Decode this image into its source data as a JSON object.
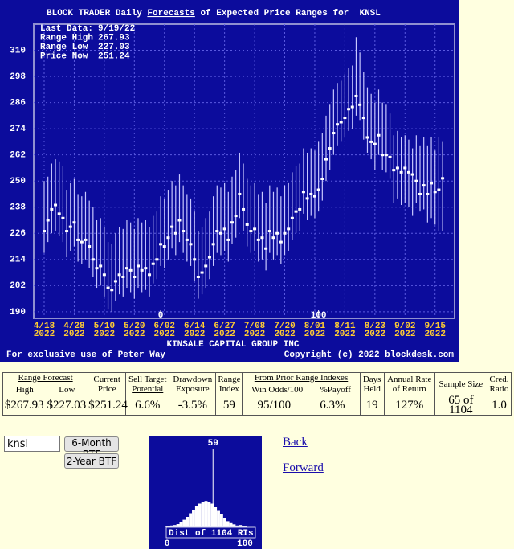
{
  "chart_data": [
    {
      "type": "range",
      "title_parts": [
        "BLOCK TRADER Daily ",
        "Forecasts",
        " of Expected Price Ranges for  KNSL"
      ],
      "info": [
        [
          "Last Data:",
          "9/19/22"
        ],
        [
          "Range High",
          "267.93"
        ],
        [
          "Range Low ",
          "227.03"
        ],
        [
          "Price Now ",
          "251.24"
        ]
      ],
      "categories": [
        "4/18",
        null,
        null,
        null,
        null,
        null,
        null,
        null,
        "4/28",
        null,
        null,
        null,
        null,
        null,
        null,
        null,
        "5/10",
        null,
        null,
        null,
        null,
        null,
        null,
        null,
        "5/20",
        null,
        null,
        null,
        null,
        null,
        null,
        null,
        "6/02",
        null,
        null,
        null,
        null,
        null,
        null,
        null,
        "6/14",
        null,
        null,
        null,
        null,
        null,
        null,
        null,
        "6/27",
        null,
        null,
        null,
        null,
        null,
        null,
        null,
        "7/08",
        null,
        null,
        null,
        null,
        null,
        null,
        null,
        "7/20",
        null,
        null,
        null,
        null,
        null,
        null,
        null,
        "8/01",
        null,
        null,
        null,
        null,
        null,
        null,
        null,
        "8/11",
        null,
        null,
        null,
        null,
        null,
        null,
        null,
        "8/23",
        null,
        null,
        null,
        null,
        null,
        null,
        null,
        "9/02",
        null,
        null,
        null,
        null,
        null,
        null,
        null,
        "9/15",
        null,
        null
      ],
      "x_year": "2022",
      "high": [
        250,
        252,
        258,
        260,
        259,
        257,
        246,
        249,
        251,
        244,
        243,
        245,
        241,
        238,
        232,
        233,
        229,
        222,
        221,
        226,
        229,
        228,
        232,
        231,
        228,
        233,
        231,
        232,
        229,
        234,
        236,
        243,
        242,
        246,
        250,
        248,
        253,
        248,
        244,
        242,
        236,
        227,
        229,
        233,
        236,
        243,
        248,
        247,
        249,
        245,
        252,
        255,
        263,
        258,
        251,
        248,
        249,
        244,
        245,
        240,
        248,
        245,
        247,
        243,
        248,
        249,
        254,
        257,
        258,
        265,
        263,
        265,
        264,
        268,
        272,
        280,
        285,
        292,
        295,
        296,
        299,
        302,
        303,
        316,
        309,
        300,
        293,
        290,
        286,
        292,
        286,
        285,
        281,
        271,
        273,
        270,
        271,
        269,
        265,
        271,
        266,
        270,
        266,
        270,
        264,
        270,
        267.93
      ],
      "low": [
        217,
        222,
        226,
        227,
        225,
        222,
        215,
        218,
        220,
        213,
        212,
        214,
        210,
        206,
        201,
        202,
        197,
        191,
        190,
        195,
        198,
        197,
        201,
        199,
        196,
        201,
        199,
        200,
        197,
        203,
        205,
        211,
        210,
        214,
        219,
        216,
        222,
        217,
        213,
        211,
        204,
        196,
        198,
        201,
        205,
        211,
        217,
        216,
        218,
        213,
        221,
        224,
        233,
        227,
        220,
        217,
        218,
        213,
        214,
        209,
        217,
        214,
        216,
        212,
        216,
        218,
        223,
        226,
        227,
        235,
        232,
        234,
        233,
        236,
        241,
        250,
        255,
        262,
        266,
        268,
        270,
        273,
        274,
        280,
        278,
        269,
        263,
        260,
        255,
        262,
        255,
        254,
        251,
        240,
        242,
        239,
        240,
        238,
        234,
        240,
        236,
        237,
        231,
        233,
        230,
        227,
        227.03
      ],
      "price": [
        227,
        232,
        237,
        239,
        235,
        233,
        227,
        229,
        231,
        223,
        222,
        223,
        220,
        214,
        210,
        211,
        207,
        201,
        200,
        204,
        207,
        206,
        210,
        209,
        206,
        211,
        209,
        210,
        207,
        212,
        214,
        221,
        220,
        224,
        229,
        226,
        232,
        227,
        223,
        221,
        214,
        206,
        208,
        211,
        215,
        221,
        227,
        226,
        228,
        223,
        231,
        234,
        244,
        237,
        230,
        227,
        228,
        223,
        224,
        219,
        227,
        224,
        226,
        222,
        226,
        228,
        233,
        236,
        237,
        245,
        242,
        244,
        243,
        246,
        251,
        260,
        265,
        272,
        276,
        277,
        279,
        283,
        284,
        289,
        285,
        279,
        270,
        268,
        267,
        271,
        262,
        262,
        261,
        255,
        256,
        254,
        256,
        254,
        253,
        250,
        244,
        248,
        244,
        249,
        245,
        246,
        251.24
      ],
      "ylim": [
        187,
        322
      ],
      "yticks": [
        190,
        202,
        214,
        226,
        238,
        250,
        262,
        274,
        286,
        298,
        310
      ],
      "grid": true,
      "annotations": [
        {
          "x": 31,
          "label": "0"
        },
        {
          "x": 73,
          "label": "100"
        }
      ],
      "footer_left": "For exclusive use of Peter Way",
      "footer_center": "KINSALE CAPITAL GROUP INC",
      "footer_right": "Copyright (c) 2022 blockdesk.com",
      "color": "#ffffff",
      "range_color": "#c8c8ff",
      "background": "#0c0c9c"
    },
    {
      "type": "histogram",
      "bins": [
        0,
        4,
        8,
        12,
        16,
        20,
        24,
        28,
        32,
        36,
        40,
        44,
        48,
        52,
        56,
        60,
        64,
        68,
        72,
        76,
        80,
        84,
        88,
        92,
        96,
        100
      ],
      "counts": [
        2,
        4,
        6,
        10,
        18,
        28,
        40,
        55,
        70,
        85,
        95,
        100,
        106,
        103,
        95,
        80,
        65,
        50,
        35,
        22,
        14,
        9,
        4,
        6,
        2
      ],
      "xlim": [
        0,
        100
      ],
      "xticks": [
        0,
        100
      ],
      "ylim": [
        0,
        200
      ],
      "marker": 59,
      "caption": "Dist of 1104 RIs",
      "color": "#ffffff",
      "background": "#0c0c9c"
    }
  ],
  "table": {
    "headers": [
      {
        "title": "Range Forecast",
        "sub": [
          "High",
          "Low"
        ]
      },
      {
        "title": "Current Price"
      },
      {
        "title": "Sell Target Potential"
      },
      {
        "title": "Drawdown Exposure"
      },
      {
        "title": "Range Index"
      },
      {
        "title": "From Prior Range Indexes",
        "sub": [
          "Win Odds/100",
          "%Payoff"
        ]
      },
      {
        "title": "Days Held"
      },
      {
        "title": "Annual Rate of Return"
      },
      {
        "title": "Sample Size"
      },
      {
        "title": "Cred. Ratio"
      }
    ],
    "row": [
      "$267.93",
      "$227.03",
      "$251.24",
      "6.6%",
      "-3.5%",
      "59",
      "95/100",
      "6.3%",
      "19",
      "127%",
      "65 of 1104",
      "1.0"
    ]
  },
  "controls": {
    "input": "knsl",
    "buttons": [
      "6-Month BTF",
      "2-Year BTF"
    ],
    "links": [
      "Back",
      "Forward"
    ]
  }
}
